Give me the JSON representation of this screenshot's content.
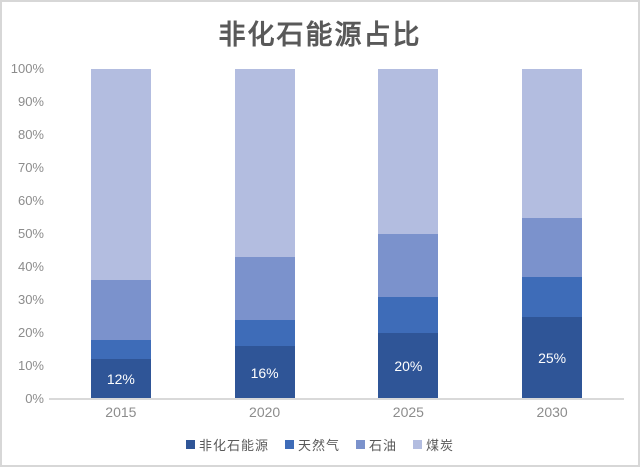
{
  "chart_data": {
    "type": "bar",
    "subtype": "stacked-100-percent",
    "title": "非化石能源占比",
    "categories": [
      "2015",
      "2020",
      "2025",
      "2030"
    ],
    "series": [
      {
        "name": "非化石能源",
        "color": "#2F5597",
        "values": [
          12,
          16,
          20,
          25
        ],
        "data_labels": [
          "12%",
          "16%",
          "20%",
          "25%"
        ]
      },
      {
        "name": "天然气",
        "color": "#3E6CB8",
        "values": [
          6,
          8,
          11,
          12
        ]
      },
      {
        "name": "石油",
        "color": "#7B92CC",
        "values": [
          18,
          19,
          19,
          18
        ]
      },
      {
        "name": "煤炭",
        "color": "#B3BDE0",
        "values": [
          64,
          57,
          50,
          45
        ]
      }
    ],
    "y_ticks": [
      "0%",
      "10%",
      "20%",
      "30%",
      "40%",
      "50%",
      "60%",
      "70%",
      "80%",
      "90%",
      "100%"
    ],
    "ylim": [
      0,
      100
    ],
    "xlabel": "",
    "ylabel": "",
    "grid": false,
    "legend_position": "bottom",
    "data_label_color": "#FFFFFF"
  },
  "styles": {
    "title_color": "#595959",
    "axis_tick_color": "#8C8C8C",
    "legend_text_color": "#595959",
    "axis_line_color": "#D9D9D9",
    "frame_border_color": "#D7D7D7",
    "background": "#FFFFFF"
  }
}
